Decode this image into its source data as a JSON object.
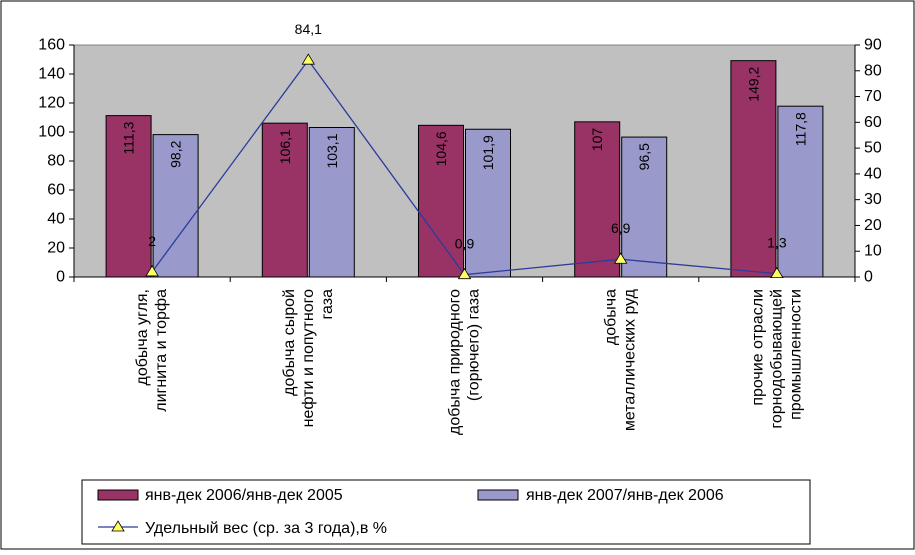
{
  "chart_data": {
    "type": "bar",
    "categories": [
      [
        "добыча угля,",
        "лигнита и торфа"
      ],
      [
        "добыча сырой",
        "нефти и попутного",
        "газа"
      ],
      [
        "добыча природного",
        "(горючего) газа"
      ],
      [
        "добыча",
        "металлических руд"
      ],
      [
        "прочие отрасли",
        "горнодобывающей",
        "промышленности"
      ]
    ],
    "series": [
      {
        "name": "янв-дек 2006/янв-дек 2005",
        "values": [
          111.3,
          106.1,
          104.6,
          107,
          149.2
        ],
        "labels": [
          "111,3",
          "106,1",
          "104,6",
          "107",
          "149,2"
        ],
        "color": "#993366",
        "axis": "left"
      },
      {
        "name": "янв-дек 2007/янв-дек 2006",
        "values": [
          98.2,
          103.1,
          101.9,
          96.5,
          117.8
        ],
        "labels": [
          "98,2",
          "103,1",
          "101,9",
          "96,5",
          "117,8"
        ],
        "color": "#9999CC",
        "axis": "left"
      },
      {
        "name": "Удельный вес (ср. за 3 года),в %",
        "type": "line",
        "values": [
          2,
          84.1,
          0.9,
          6.9,
          1.3
        ],
        "labels": [
          "2",
          "84,1",
          "0,9",
          "6,9",
          "1,3"
        ],
        "color": "#2B3C9B",
        "marker_color": "#FFFF66",
        "axis": "right"
      }
    ],
    "ylim": [
      0,
      160
    ],
    "yticks": [
      0,
      20,
      40,
      60,
      80,
      100,
      120,
      140,
      160
    ],
    "y2lim": [
      0,
      90
    ],
    "y2ticks": [
      0,
      10,
      20,
      30,
      40,
      50,
      60,
      70,
      80,
      90
    ],
    "plot_background": "#C0C0C0",
    "grid": false,
    "legend_position": "bottom"
  }
}
